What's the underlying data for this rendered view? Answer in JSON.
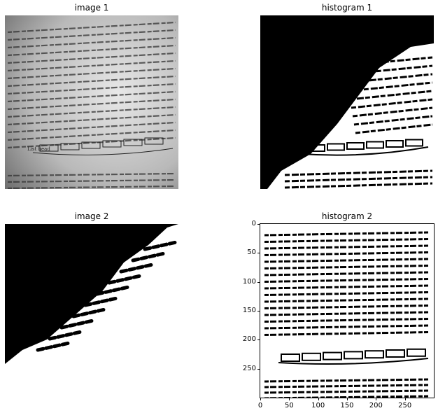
{
  "figure": {
    "panels": [
      {
        "title": "image 1",
        "content": "grayscale photo of a book page with printed text and a linked-list diagram"
      },
      {
        "title": "histogram 1",
        "content": "binarized (black/white) version of the book page"
      },
      {
        "title": "image 2",
        "content": "binarized mask, mostly black upper-left, white lower-right"
      },
      {
        "title": "histogram 2",
        "content": "binarized book page text shown with pixel axes"
      }
    ],
    "embedded_text": {
      "list_head": "List head"
    }
  },
  "chart_data": {
    "type": "heatmap",
    "title": "histogram 2",
    "xlabel": "",
    "ylabel": "",
    "xticks": [
      "0",
      "50",
      "100",
      "150",
      "200",
      "250"
    ],
    "yticks": [
      "0",
      "50",
      "100",
      "150",
      "200",
      "250"
    ],
    "xlim": [
      0,
      300
    ],
    "ylim": [
      300,
      0
    ],
    "grid": false
  }
}
